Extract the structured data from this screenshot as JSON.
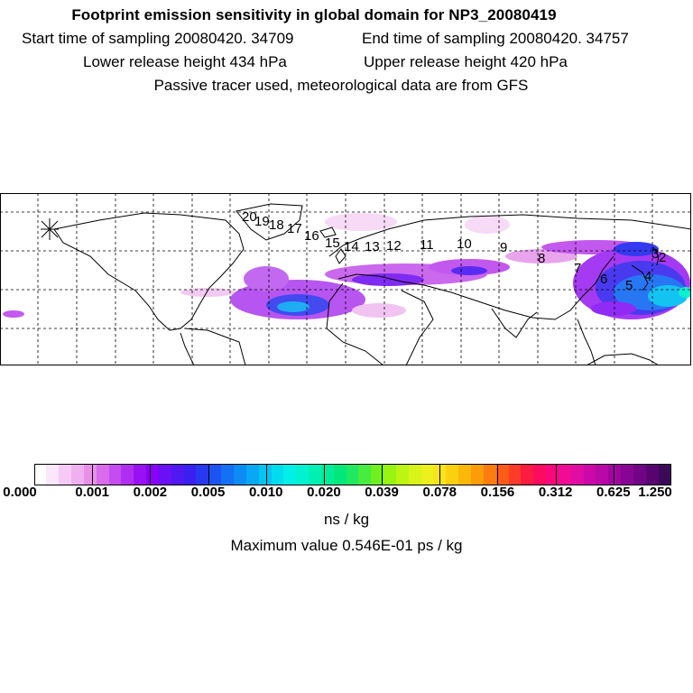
{
  "header": {
    "title": "Footprint emission sensitivity in global domain for NP3_20080419",
    "start_time": "Start time of sampling 20080420. 34709",
    "end_time": "End time of sampling 20080420. 34757",
    "lower_height": "Lower release height  434 hPa",
    "upper_height": "Upper release height  420 hPa",
    "tracer_note": "Passive tracer used, meteorological data are from GFS"
  },
  "trajectory_labels": [
    "20",
    "19",
    "18",
    "17",
    "16",
    "15",
    "14",
    "13",
    "12",
    "11",
    "10",
    "9",
    "8",
    "7",
    "6",
    "5",
    "4",
    "3",
    "2"
  ],
  "colorbar": {
    "units": "ns / kg",
    "tick_labels": [
      "0.000",
      "0.001",
      "0.002",
      "0.005",
      "0.010",
      "0.020",
      "0.039",
      "0.078",
      "0.156",
      "0.312",
      "0.625",
      "1.250"
    ],
    "colors": [
      "#ffffff",
      "#fbe6fb",
      "#f5cbf5",
      "#efb0ef",
      "#e890e8",
      "#d86cec",
      "#c44cf0",
      "#b02ef2",
      "#9a10f4",
      "#8a00f8",
      "#6a10f6",
      "#5018f2",
      "#3a20f0",
      "#2838f2",
      "#1c54f4",
      "#1470f4",
      "#0c8cf4",
      "#08a8f4",
      "#04c4f2",
      "#00dcef",
      "#00f0e8",
      "#00f2d0",
      "#00f0b4",
      "#00ec98",
      "#00e87c",
      "#20e860",
      "#48ec40",
      "#70f020",
      "#98f410",
      "#bcf414",
      "#d8f418",
      "#ecf01c",
      "#f8e41c",
      "#fcd010",
      "#fcb808",
      "#fc9c08",
      "#fc7c10",
      "#fc5c18",
      "#fc3c28",
      "#fc1c40",
      "#fc0c60",
      "#f8087c",
      "#f00c94",
      "#e00ca4",
      "#cc08a8",
      "#b808a8",
      "#a004a0",
      "#880494",
      "#700484",
      "#580470",
      "#3c0858"
    ],
    "max_value": "Maximum value  0.546E-01 ps / kg"
  }
}
